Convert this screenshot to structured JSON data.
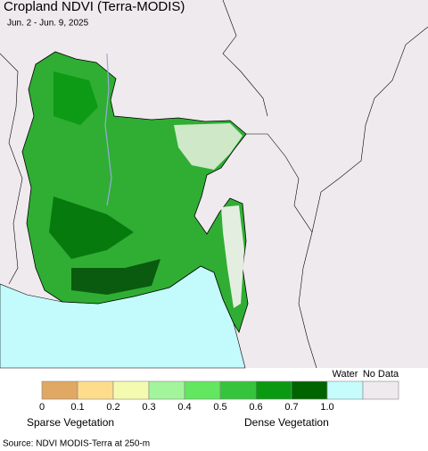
{
  "header": {
    "title": "Cropland NDVI (Terra-MODIS)",
    "date": "Jun. 2 - Jun. 9, 2025"
  },
  "legend": {
    "colors": [
      "#e0a862",
      "#fddc8c",
      "#f4fbb0",
      "#a3f59c",
      "#63e660",
      "#36c43c",
      "#0a9a12",
      "#006400",
      "#c6fcfc",
      "#eeeaee"
    ],
    "ticks": [
      "0",
      "0.1",
      "0.2",
      "0.3",
      "0.4",
      "0.5",
      "0.6",
      "0.7",
      "1.0"
    ],
    "water_label": "Water",
    "nodata_label": "No Data",
    "sparse_label": "Sparse Vegetation",
    "dense_label": "Dense Vegetation"
  },
  "source": "Source: NDVI MODIS-Terra at 250-m"
}
